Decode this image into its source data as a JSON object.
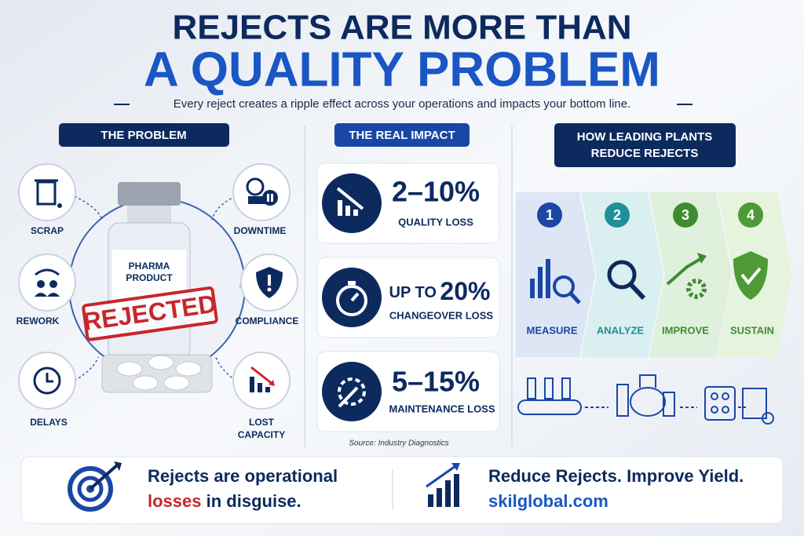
{
  "header": {
    "title_lines": [
      "REJECTS ARE MORE THAN",
      "A QUALITY PROBLEM"
    ],
    "subtitle": "Every reject creates a ripple effect across your operations and impacts your bottom line."
  },
  "problem": {
    "heading": "THE PROBLEM",
    "product_label": [
      "PHARMA",
      "PRODUCT"
    ],
    "stamp": "REJECTED",
    "items": [
      [
        "SCRAP"
      ],
      [
        "REWORK"
      ],
      [
        "DELAYS"
      ],
      [
        "DOWNTIME"
      ],
      [
        "COMPLIANCE"
      ],
      [
        "LOST",
        "CAPACITY"
      ]
    ]
  },
  "impact": {
    "heading": "THE REAL IMPACT",
    "cards": [
      {
        "value": "2–10%",
        "label": "QUALITY LOSS"
      },
      {
        "prefix": "UP TO",
        "value": "20%",
        "label": "CHANGEOVER LOSS"
      },
      {
        "value": "5–15%",
        "label": "MAINTENANCE LOSS"
      }
    ],
    "source": "Source: Industry Diagnostics"
  },
  "plants": {
    "heading": [
      "HOW LEADING PLANTS",
      "REDUCE REJECTS"
    ],
    "steps": [
      {
        "number": 1,
        "label": "MEASURE"
      },
      {
        "number": 2,
        "label": "ANALYZE"
      },
      {
        "number": 3,
        "label": "IMPROVE"
      },
      {
        "number": 4,
        "label": "SUSTAIN"
      }
    ]
  },
  "footer": {
    "left": {
      "line1": "Rejects are operational",
      "highlight": "losses",
      "rest": "in disguise."
    },
    "right": {
      "tagline": "Reduce Rejects. Improve Yield.",
      "url": "skilglobal.com"
    }
  }
}
